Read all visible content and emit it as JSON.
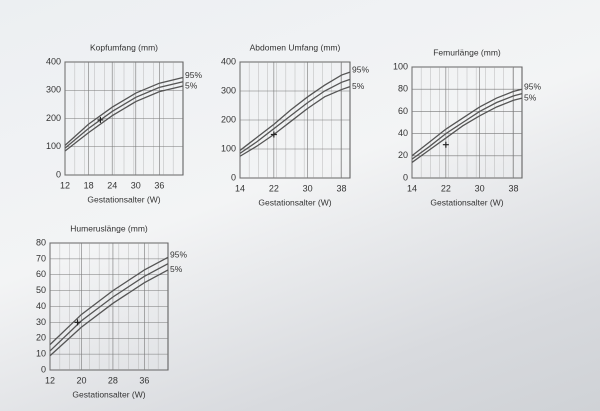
{
  "chart_data": [
    {
      "type": "line",
      "title": "Kopfumfang (mm)",
      "xlabel": "Gestationsalter (W)",
      "x": [
        12,
        18,
        24,
        30,
        36,
        42
      ],
      "xlim": [
        12,
        42
      ],
      "xticks": [
        12,
        18,
        24,
        30,
        36
      ],
      "ylim": [
        0,
        400
      ],
      "yticks": [
        0,
        100,
        200,
        300,
        400
      ],
      "grid": true,
      "series": [
        {
          "name": "95%",
          "color": "#555555",
          "values": [
            105,
            180,
            240,
            290,
            325,
            345
          ]
        },
        {
          "color": "#555555",
          "values": [
            95,
            165,
            225,
            275,
            310,
            330
          ]
        },
        {
          "name": "5%",
          "color": "#555555",
          "values": [
            85,
            150,
            210,
            260,
            295,
            315
          ]
        }
      ],
      "marker": {
        "x": 21,
        "y": 195
      }
    },
    {
      "type": "line",
      "title": "Abdomen Umfang (mm)",
      "xlabel": "Gestationsalter (W)",
      "x": [
        14,
        18,
        22,
        26,
        30,
        34,
        38,
        40
      ],
      "xlim": [
        14,
        40
      ],
      "xticks": [
        14,
        22,
        30,
        38
      ],
      "ylim": [
        0,
        400
      ],
      "yticks": [
        0,
        100,
        200,
        300,
        400
      ],
      "grid": true,
      "series": [
        {
          "name": "95%",
          "color": "#555555",
          "values": [
            95,
            140,
            185,
            235,
            280,
            320,
            355,
            365
          ]
        },
        {
          "color": "#555555",
          "values": [
            85,
            125,
            170,
            215,
            260,
            300,
            330,
            340
          ]
        },
        {
          "name": "5%",
          "color": "#555555",
          "values": [
            75,
            110,
            150,
            195,
            240,
            280,
            305,
            315
          ]
        }
      ],
      "marker": {
        "x": 22,
        "y": 150
      }
    },
    {
      "type": "line",
      "title": "Femurlänge (mm)",
      "xlabel": "Gestationsalter (W)",
      "x": [
        14,
        18,
        22,
        26,
        30,
        34,
        38,
        40
      ],
      "xlim": [
        14,
        40
      ],
      "xticks": [
        14,
        22,
        30,
        38
      ],
      "ylim": [
        0,
        100
      ],
      "yticks": [
        0,
        20,
        40,
        60,
        80,
        100
      ],
      "grid": true,
      "series": [
        {
          "name": "95%",
          "color": "#555555",
          "values": [
            20,
            32,
            44,
            54,
            64,
            72,
            78,
            80
          ]
        },
        {
          "color": "#555555",
          "values": [
            17,
            28,
            40,
            50,
            60,
            68,
            74,
            76
          ]
        },
        {
          "name": "5%",
          "color": "#555555",
          "values": [
            14,
            25,
            36,
            47,
            56,
            64,
            70,
            72
          ]
        }
      ],
      "marker": {
        "x": 22,
        "y": 30
      }
    },
    {
      "type": "line",
      "title": "Humeruslänge (mm)",
      "xlabel": "Gestationsalter (W)",
      "x": [
        12,
        20,
        28,
        36,
        42
      ],
      "xlim": [
        12,
        42
      ],
      "xticks": [
        12,
        20,
        28,
        36
      ],
      "ylim": [
        0,
        80
      ],
      "yticks": [
        0,
        10,
        20,
        30,
        40,
        50,
        60,
        70,
        80
      ],
      "grid": true,
      "series": [
        {
          "name": "95%",
          "color": "#555555",
          "values": [
            16,
            35,
            50,
            63,
            71
          ]
        },
        {
          "color": "#555555",
          "values": [
            12,
            31,
            46,
            59,
            67
          ]
        },
        {
          "name": "5%",
          "color": "#555555",
          "values": [
            9,
            27,
            42,
            55,
            63
          ]
        }
      ],
      "marker": {
        "x": 19,
        "y": 30
      }
    }
  ]
}
